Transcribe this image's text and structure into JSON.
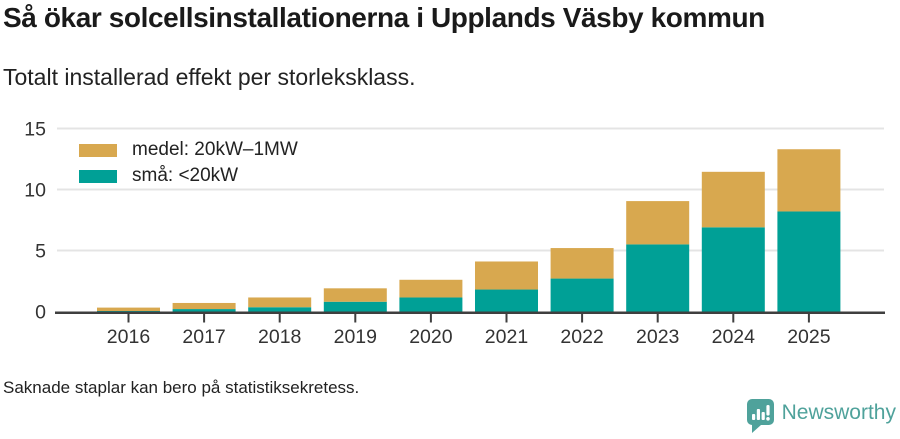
{
  "header": {
    "title": "Så ökar solcellsinstallationerna i Upplands Väsby kommun",
    "subtitle": "Totalt installerad effekt per storleksklass."
  },
  "footer": {
    "note": "Saknade staplar kan bero på statistiksekretess."
  },
  "branding": {
    "logo_text": "Newsworthy",
    "logo_icon": "speech-bubble-bar-chart-icon",
    "logo_color": "#4FA29B"
  },
  "colors": {
    "medel": "#D8A84F",
    "sma": "#00A096",
    "grid": "#E4E4E4",
    "axis": "#3F3F3F",
    "axis_text": "#333333",
    "title_text": "#1A1A1A"
  },
  "chart_data": {
    "type": "bar",
    "stacked": true,
    "title": "Så ökar solcellsinstallationerna i Upplands Väsby kommun",
    "subtitle": "Totalt installerad effekt per storleksklass.",
    "xlabel": "",
    "ylabel": "",
    "categories": [
      "2016",
      "2017",
      "2018",
      "2019",
      "2020",
      "2021",
      "2022",
      "2023",
      "2024",
      "2025"
    ],
    "series": [
      {
        "name": "medel: 20kW–1MW",
        "color": "#D8A84F",
        "stack_order": "top",
        "values": [
          0.28,
          0.5,
          0.8,
          1.1,
          1.45,
          2.3,
          2.5,
          3.55,
          4.55,
          5.1
        ]
      },
      {
        "name": "små: <20kW",
        "color": "#00A096",
        "stack_order": "bottom",
        "values": [
          0.04,
          0.2,
          0.35,
          0.8,
          1.15,
          1.8,
          2.7,
          5.5,
          6.9,
          8.2
        ]
      }
    ],
    "stacked_totals": [
      0.32,
      0.7,
      1.15,
      1.9,
      2.6,
      4.1,
      5.2,
      9.05,
      11.45,
      13.3
    ],
    "ylim": [
      0,
      15
    ],
    "yticks": [
      0,
      5,
      10,
      15
    ],
    "grid": true,
    "legend_position": "top-left"
  }
}
